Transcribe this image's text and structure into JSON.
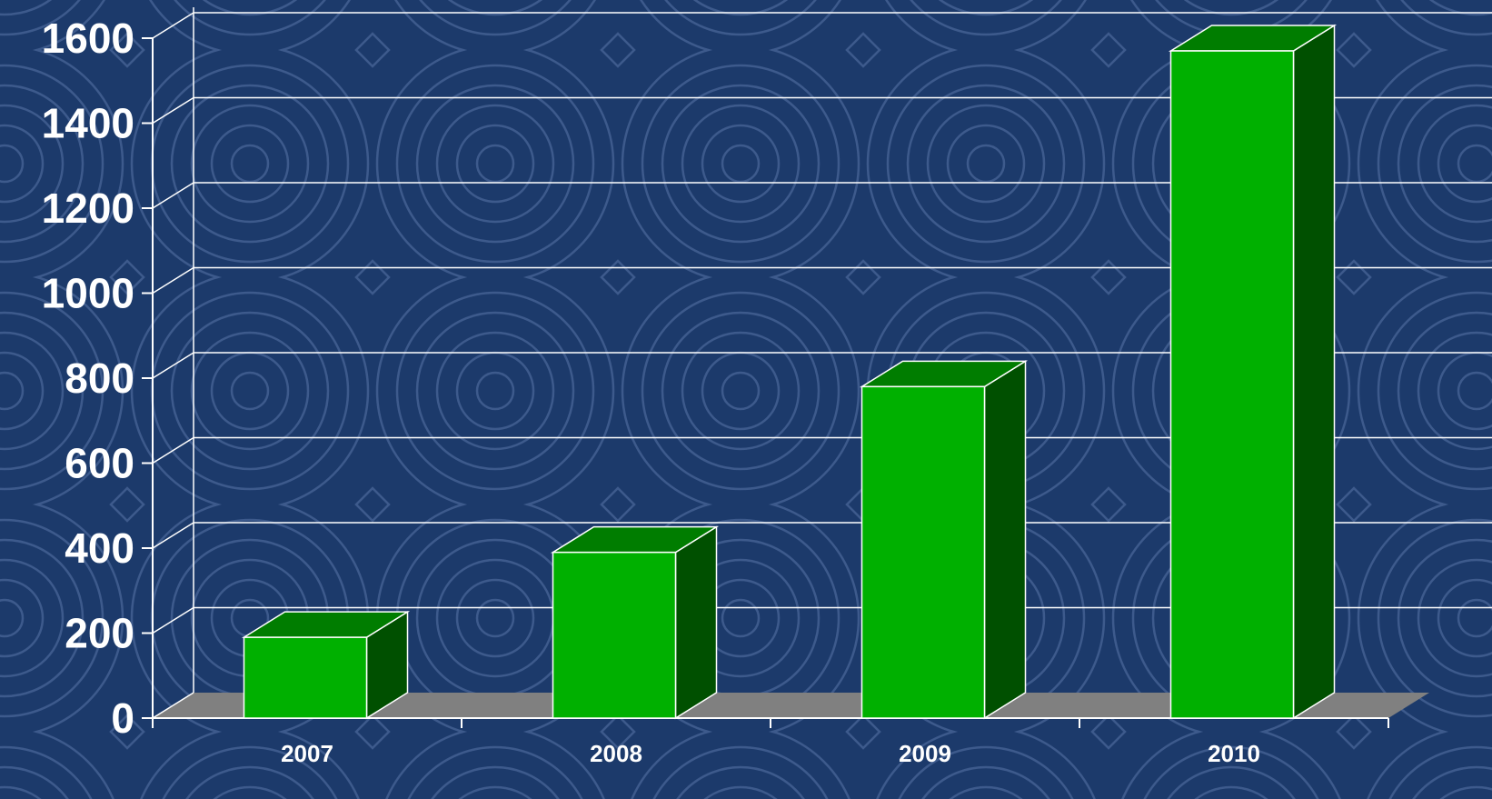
{
  "chart_data": {
    "type": "bar",
    "style": "3d-column",
    "categories": [
      "2007",
      "2008",
      "2009",
      "2010"
    ],
    "values": [
      190,
      390,
      780,
      1570
    ],
    "ylim": [
      0,
      1600
    ],
    "yticks": [
      "0",
      "200",
      "400",
      "600",
      "800",
      "1000",
      "1200",
      "1400",
      "1600"
    ],
    "title": "",
    "xlabel": "",
    "ylabel": "",
    "grid": true,
    "legend": "none"
  },
  "colors": {
    "background": "#1c3a6b",
    "pattern": "#3d5a8c",
    "bar_front": "#00b000",
    "bar_top": "#007d00",
    "bar_side": "#005000",
    "floor": "#808080",
    "grid": "#ffffff",
    "text": "#ffffff"
  }
}
